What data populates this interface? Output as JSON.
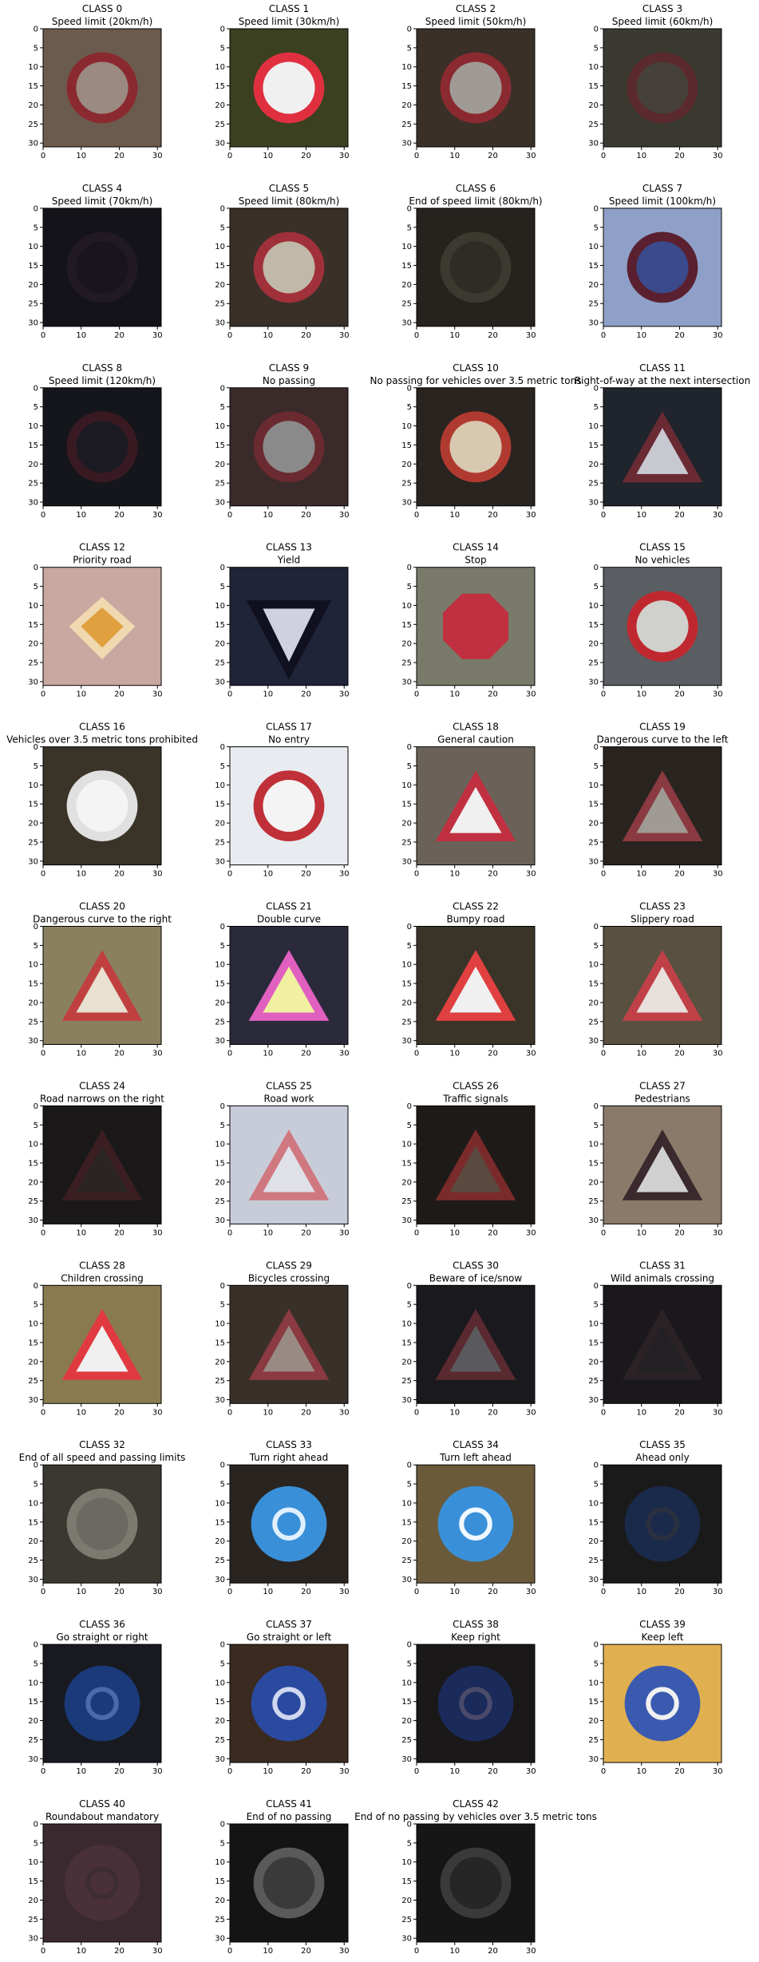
{
  "chart_data": {
    "type": "image-grid",
    "grid": {
      "columns": 4,
      "rows": 11
    },
    "axes": {
      "xticks": [
        0,
        10,
        20,
        30
      ],
      "yticks": [
        0,
        5,
        10,
        15,
        20,
        25,
        30
      ],
      "xlim": [
        0,
        31
      ],
      "ylim": [
        31,
        0
      ]
    },
    "panels": [
      {
        "class_label": "CLASS 0",
        "name": "Speed limit (20km/h)",
        "colors": {
          "bg": "#6b5a4e",
          "sign": "#8a2a30",
          "inner": "#9a8a80"
        }
      },
      {
        "class_label": "CLASS 1",
        "name": "Speed limit (30km/h)",
        "colors": {
          "bg": "#3a4020",
          "sign": "#e03040",
          "inner": "#f0f0f0"
        }
      },
      {
        "class_label": "CLASS 2",
        "name": "Speed limit (50km/h)",
        "colors": {
          "bg": "#3a3028",
          "sign": "#8a2a30",
          "inner": "#a09a94"
        }
      },
      {
        "class_label": "CLASS 3",
        "name": "Speed limit (60km/h)",
        "colors": {
          "bg": "#3a3a32",
          "sign": "#5a2a2e",
          "inner": "#46403a"
        }
      },
      {
        "class_label": "CLASS 4",
        "name": "Speed limit (70km/h)",
        "colors": {
          "bg": "#15131a",
          "sign": "#221a22",
          "inner": "#18161c"
        }
      },
      {
        "class_label": "CLASS 5",
        "name": "Speed limit (80km/h)",
        "colors": {
          "bg": "#3a3028",
          "sign": "#a0303a",
          "inner": "#c0b8a8"
        }
      },
      {
        "class_label": "CLASS 6",
        "name": "End of speed limit (80km/h)",
        "colors": {
          "bg": "#26231e",
          "sign": "#3a3a30",
          "inner": "#2e2c26"
        }
      },
      {
        "class_label": "CLASS 7",
        "name": "Speed limit (100km/h)",
        "colors": {
          "bg": "#8fa0c8",
          "sign": "#5a2030",
          "inner": "#3a4a8a"
        }
      },
      {
        "class_label": "CLASS 8",
        "name": "Speed limit (120km/h)",
        "colors": {
          "bg": "#15161c",
          "sign": "#3a1a22",
          "inner": "#1c1a22"
        }
      },
      {
        "class_label": "CLASS 9",
        "name": "No passing",
        "colors": {
          "bg": "#3a2a2a",
          "sign": "#6a2a30",
          "inner": "#8a8a8a"
        }
      },
      {
        "class_label": "CLASS 10",
        "name": "No passing for vehicles over 3.5 metric tons",
        "colors": {
          "bg": "#2a2420",
          "sign": "#b03a30",
          "inner": "#d8c8b0"
        }
      },
      {
        "class_label": "CLASS 11",
        "name": "Right-of-way at the next intersection",
        "colors": {
          "bg": "#20242c",
          "sign": "#6a2a34",
          "inner": "#c8c8d0"
        }
      },
      {
        "class_label": "CLASS 12",
        "name": "Priority road",
        "colors": {
          "bg": "#c8a8a0",
          "sign": "#e0a040",
          "inner": "#f0d8b0"
        }
      },
      {
        "class_label": "CLASS 13",
        "name": "Yield",
        "colors": {
          "bg": "#202438",
          "sign": "#101020",
          "inner": "#d0d0e0"
        }
      },
      {
        "class_label": "CLASS 14",
        "name": "Stop",
        "colors": {
          "bg": "#7a7a6a",
          "sign": "#c03040",
          "inner": "#e0a0a8"
        }
      },
      {
        "class_label": "CLASS 15",
        "name": "No vehicles",
        "colors": {
          "bg": "#5a5e62",
          "sign": "#c02830",
          "inner": "#d0d0cc"
        }
      },
      {
        "class_label": "CLASS 16",
        "name": "Vehicles over 3.5 metric tons prohibited",
        "colors": {
          "bg": "#3a3428",
          "sign": "#e0e0e0",
          "inner": "#f4f4f4"
        }
      },
      {
        "class_label": "CLASS 17",
        "name": "No entry",
        "colors": {
          "bg": "#e8ecf0",
          "sign": "#c03038",
          "inner": "#f4f4f4"
        }
      },
      {
        "class_label": "CLASS 18",
        "name": "General caution",
        "colors": {
          "bg": "#6a6258",
          "sign": "#c03040",
          "inner": "#f0f0f0"
        }
      },
      {
        "class_label": "CLASS 19",
        "name": "Dangerous curve to the left",
        "colors": {
          "bg": "#2a2420",
          "sign": "#8a3a40",
          "inner": "#a09a94"
        }
      },
      {
        "class_label": "CLASS 20",
        "name": "Dangerous curve to the right",
        "colors": {
          "bg": "#8a8060",
          "sign": "#c04040",
          "inner": "#e8e0d0"
        }
      },
      {
        "class_label": "CLASS 21",
        "name": "Double curve",
        "colors": {
          "bg": "#2a2a3a",
          "sign": "#e060c0",
          "inner": "#f0f0a0"
        }
      },
      {
        "class_label": "CLASS 22",
        "name": "Bumpy road",
        "colors": {
          "bg": "#3a3428",
          "sign": "#e04040",
          "inner": "#f0f0f0"
        }
      },
      {
        "class_label": "CLASS 23",
        "name": "Slippery road",
        "colors": {
          "bg": "#5a5040",
          "sign": "#c04048",
          "inner": "#e8e0dc"
        }
      },
      {
        "class_label": "CLASS 24",
        "name": "Road narrows on the right",
        "colors": {
          "bg": "#1a1818",
          "sign": "#3a1e22",
          "inner": "#2a2424"
        }
      },
      {
        "class_label": "CLASS 25",
        "name": "Road work",
        "colors": {
          "bg": "#c8ccd8",
          "sign": "#d07880",
          "inner": "#e0e0e8"
        }
      },
      {
        "class_label": "CLASS 26",
        "name": "Traffic signals",
        "colors": {
          "bg": "#1e1a18",
          "sign": "#7a2a2a",
          "inner": "#5a4a40"
        }
      },
      {
        "class_label": "CLASS 27",
        "name": "Pedestrians",
        "colors": {
          "bg": "#8a7a6a",
          "sign": "#3a2a2e",
          "inner": "#d0d0d0"
        }
      },
      {
        "class_label": "CLASS 28",
        "name": "Children crossing",
        "colors": {
          "bg": "#8a7a50",
          "sign": "#e03a40",
          "inner": "#f0f0f0"
        }
      },
      {
        "class_label": "CLASS 29",
        "name": "Bicycles crossing",
        "colors": {
          "bg": "#3a302a",
          "sign": "#8a3a40",
          "inner": "#9a8a84"
        }
      },
      {
        "class_label": "CLASS 30",
        "name": "Beware of ice/snow",
        "colors": {
          "bg": "#1a1a1e",
          "sign": "#5a2a30",
          "inner": "#5a5a5e"
        }
      },
      {
        "class_label": "CLASS 31",
        "name": "Wild animals crossing",
        "colors": {
          "bg": "#1a181c",
          "sign": "#2a2224",
          "inner": "#222024"
        }
      },
      {
        "class_label": "CLASS 32",
        "name": "End of all speed and passing limits",
        "colors": {
          "bg": "#3a3830",
          "sign": "#7a7a70",
          "inner": "#6a6a62"
        }
      },
      {
        "class_label": "CLASS 33",
        "name": "Turn right ahead",
        "colors": {
          "bg": "#2a2420",
          "sign": "#3a90d8",
          "inner": "#e0f0ff"
        }
      },
      {
        "class_label": "CLASS 34",
        "name": "Turn left ahead",
        "colors": {
          "bg": "#6a5a3a",
          "sign": "#3a90d8",
          "inner": "#f0f8ff"
        }
      },
      {
        "class_label": "CLASS 35",
        "name": "Ahead only",
        "colors": {
          "bg": "#1a1a1a",
          "sign": "#1a2a4a",
          "inner": "#2a3040"
        }
      },
      {
        "class_label": "CLASS 36",
        "name": "Go straight or right",
        "colors": {
          "bg": "#181a20",
          "sign": "#1a3a7a",
          "inner": "#4a6aaa"
        }
      },
      {
        "class_label": "CLASS 37",
        "name": "Go straight or left",
        "colors": {
          "bg": "#3a2a20",
          "sign": "#2a4aa0",
          "inner": "#d0d8f0"
        }
      },
      {
        "class_label": "CLASS 38",
        "name": "Keep right",
        "colors": {
          "bg": "#1a1818",
          "sign": "#1a2a5a",
          "inner": "#4a4a6a"
        }
      },
      {
        "class_label": "CLASS 39",
        "name": "Keep left",
        "colors": {
          "bg": "#e0b050",
          "sign": "#3a5ab0",
          "inner": "#f0f0f0"
        }
      },
      {
        "class_label": "CLASS 40",
        "name": "Roundabout mandatory",
        "colors": {
          "bg": "#3a2a30",
          "sign": "#4a3038",
          "inner": "#3e2c34"
        }
      },
      {
        "class_label": "CLASS 41",
        "name": "End of no passing",
        "colors": {
          "bg": "#141414",
          "sign": "#5a5a5a",
          "inner": "#3a3a3a"
        }
      },
      {
        "class_label": "CLASS 42",
        "name": "End of no passing by vehicles over 3.5 metric tons",
        "colors": {
          "bg": "#161616",
          "sign": "#3a3a3a",
          "inner": "#262626"
        }
      }
    ]
  }
}
